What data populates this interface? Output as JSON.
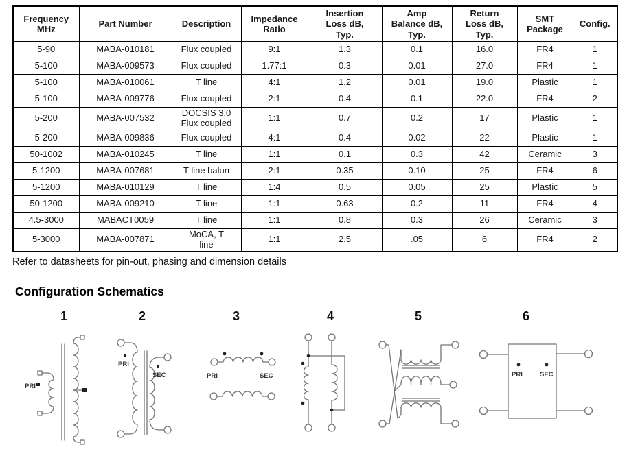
{
  "table": {
    "headers": [
      "Frequency\nMHz",
      "Part Number",
      "Description",
      "Impedance\nRatio",
      "Insertion\nLoss dB,\nTyp.",
      "Amp\nBalance dB,\nTyp.",
      "Return\nLoss dB,\nTyp.",
      "SMT\nPackage",
      "Config."
    ],
    "rows": [
      [
        "5-90",
        "MABA-010181",
        "Flux coupled",
        "9:1",
        "1.3",
        "0.1",
        "16.0",
        "FR4",
        "1"
      ],
      [
        "5-100",
        "MABA-009573",
        "Flux coupled",
        "1.77:1",
        "0.3",
        "0.01",
        "27.0",
        "FR4",
        "1"
      ],
      [
        "5-100",
        "MABA-010061",
        "T line",
        "4:1",
        "1.2",
        "0.01",
        "19.0",
        "Plastic",
        "1"
      ],
      [
        "5-100",
        "MABA-009776",
        "Flux coupled",
        "2:1",
        "0.4",
        "0.1",
        "22.0",
        "FR4",
        "2"
      ],
      [
        "5-200",
        "MABA-007532",
        "DOCSIS 3.0\nFlux coupled",
        "1:1",
        "0.7",
        "0.2",
        "17",
        "Plastic",
        "1"
      ],
      [
        "5-200",
        "MABA-009836",
        "Flux coupled",
        "4:1",
        "0.4",
        "0.02",
        "22",
        "Plastic",
        "1"
      ],
      [
        "50-1002",
        "MABA-010245",
        "T line",
        "1:1",
        "0.1",
        "0.3",
        "42",
        "Ceramic",
        "3"
      ],
      [
        "5-1200",
        "MABA-007681",
        "T line balun",
        "2:1",
        "0.35",
        "0.10",
        "25",
        "FR4",
        "6"
      ],
      [
        "5-1200",
        "MABA-010129",
        "T line",
        "1:4",
        "0.5",
        "0.05",
        "25",
        "Plastic",
        "5"
      ],
      [
        "50-1200",
        "MABA-009210",
        "T line",
        "1:1",
        "0.63",
        "0.2",
        "11",
        "FR4",
        "4"
      ],
      [
        "4.5-3000",
        "MABACT0059",
        "T line",
        "1:1",
        "0.8",
        "0.3",
        "26",
        "Ceramic",
        "3"
      ],
      [
        "5-3000",
        "MABA-007871",
        "MoCA, T\nline",
        "1:1",
        "2.5",
        ".05",
        "6",
        "FR4",
        "2"
      ]
    ]
  },
  "note": "Refer to datasheets for pin-out, phasing and dimension details",
  "schematics_heading": "Configuration Schematics",
  "schematics": [
    {
      "number": "1",
      "pri": "PRI"
    },
    {
      "number": "2",
      "pri": "PRI",
      "sec": "SEC"
    },
    {
      "number": "3",
      "pri": "PRI",
      "sec": "SEC"
    },
    {
      "number": "4"
    },
    {
      "number": "5"
    },
    {
      "number": "6",
      "pri": "PRI",
      "sec": "SEC"
    }
  ]
}
